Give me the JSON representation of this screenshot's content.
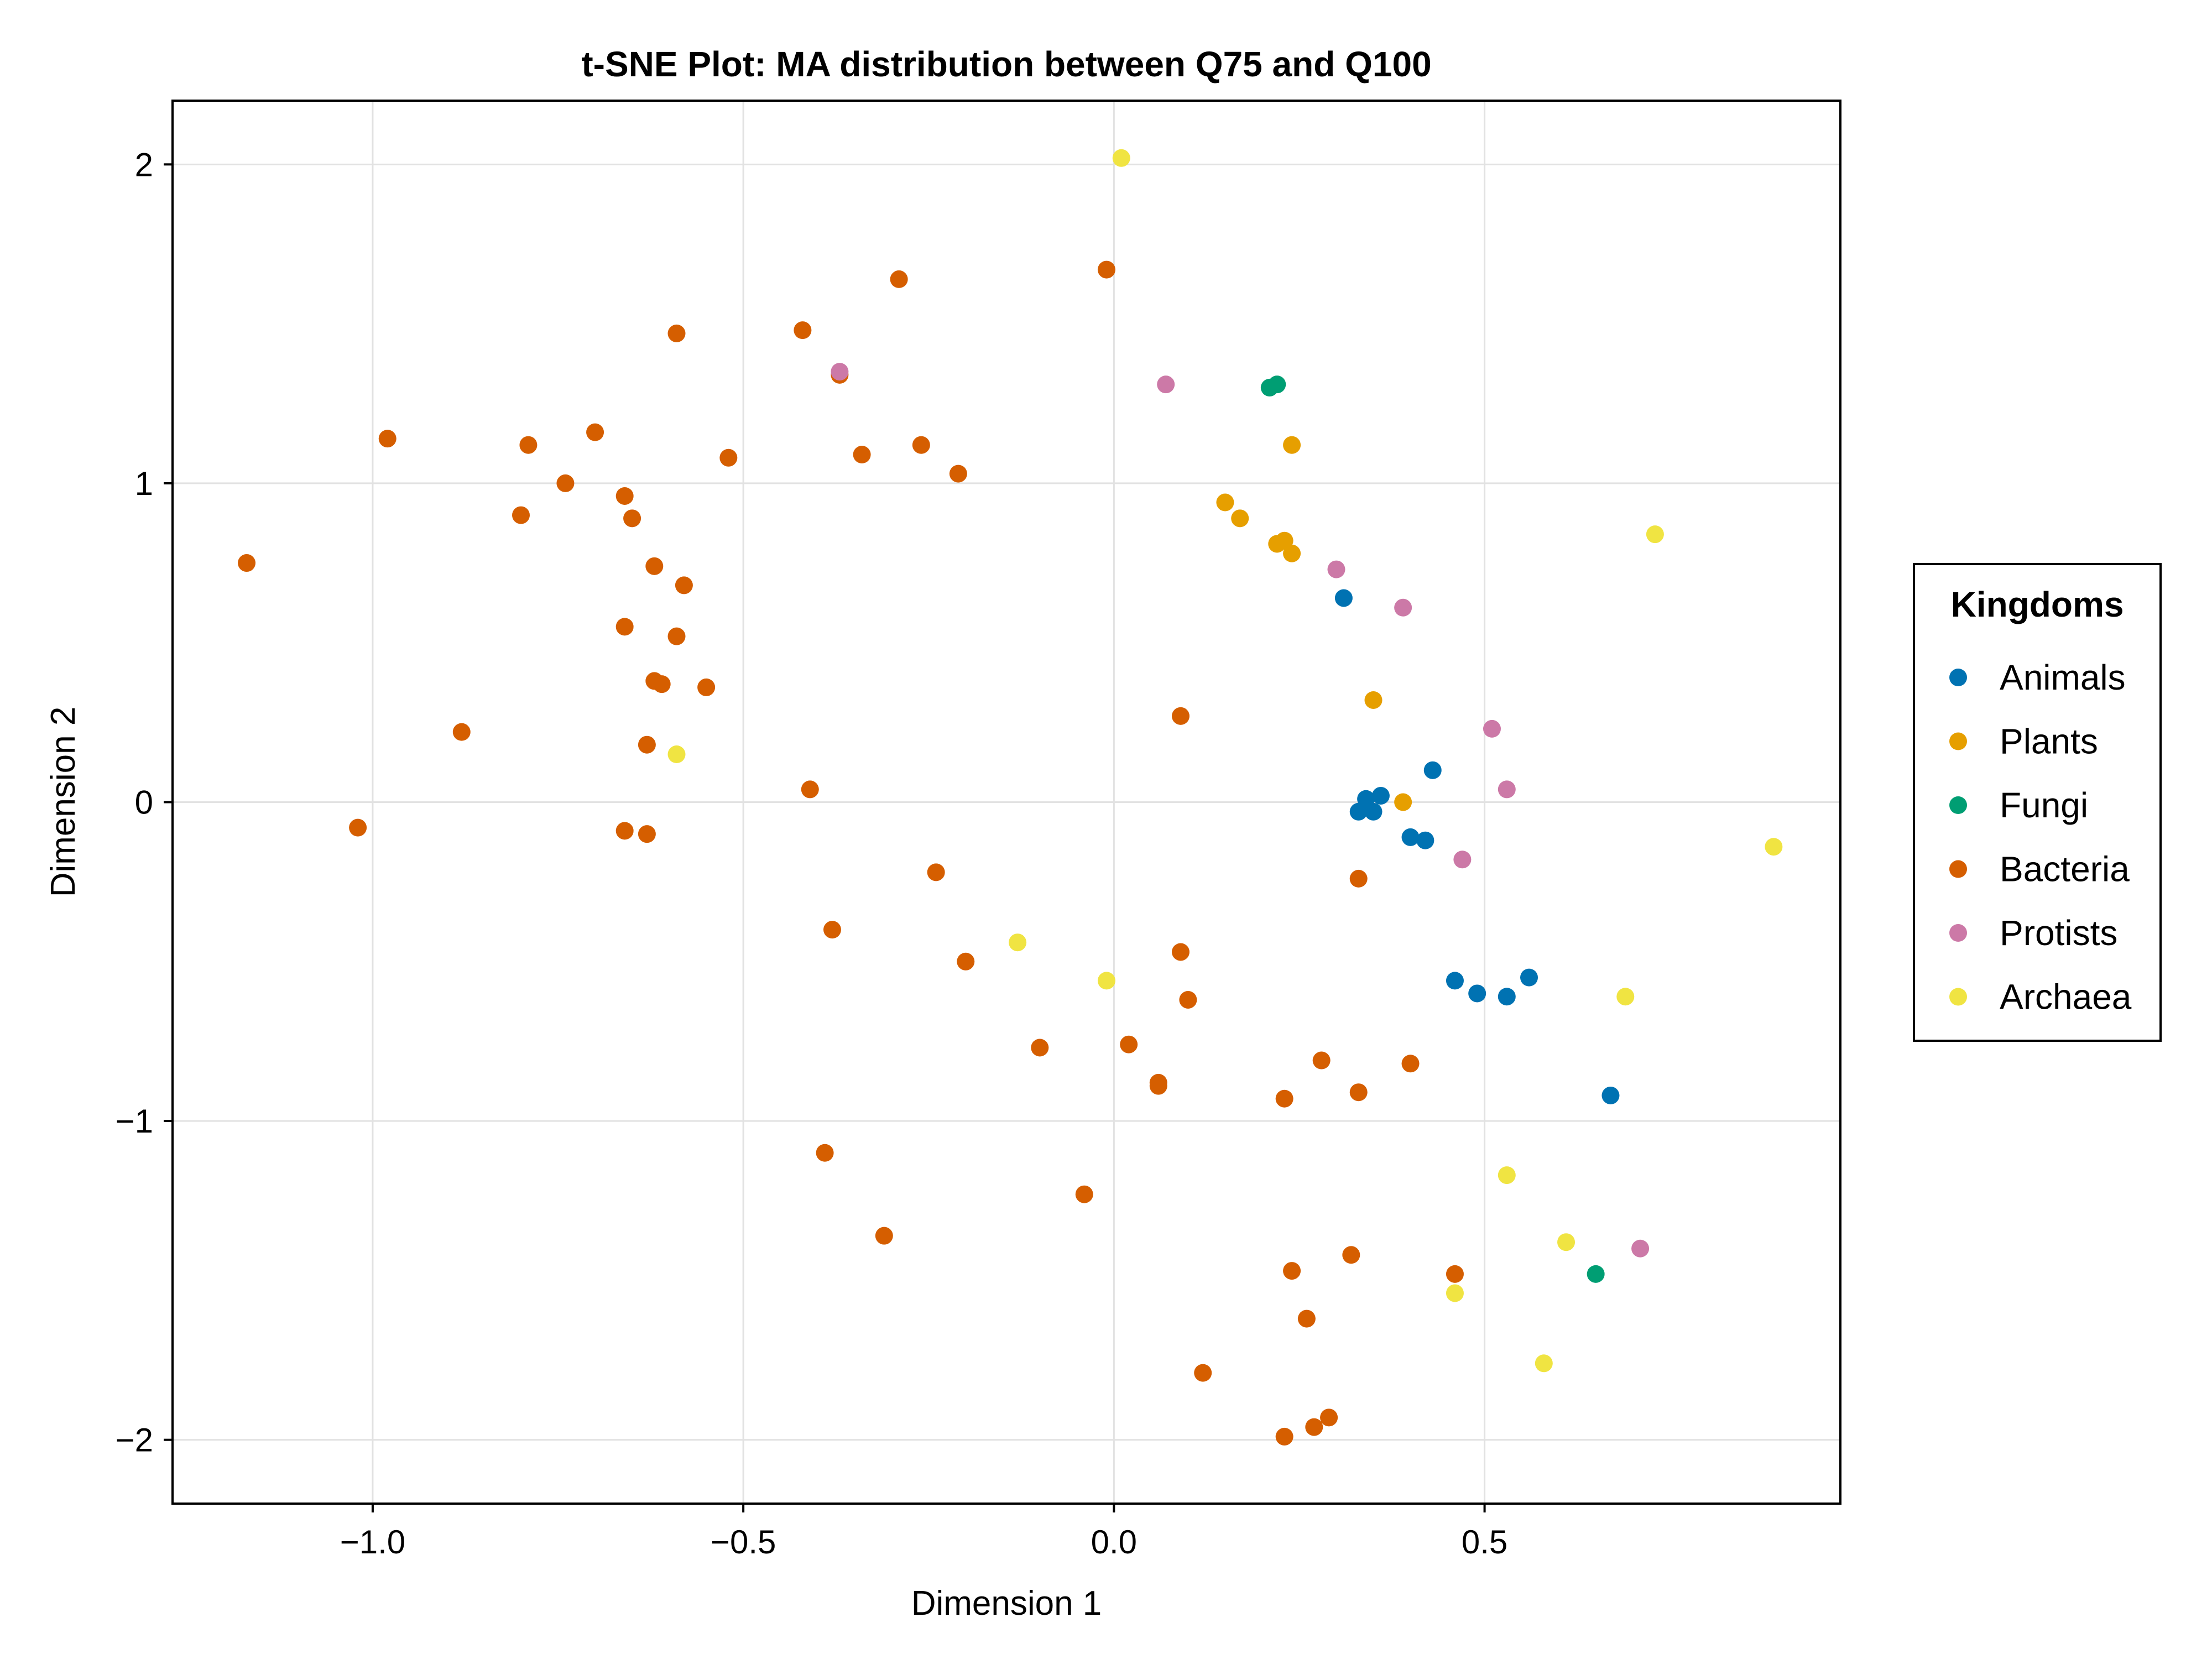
{
  "chart_data": {
    "type": "scatter",
    "title": "t-SNE Plot: MA distribution between Q75 and Q100",
    "xlabel": "Dimension 1",
    "ylabel": "Dimension 2",
    "xlim": [
      -1.27,
      0.98
    ],
    "ylim": [
      -2.2,
      2.2
    ],
    "grid": true,
    "xticks": [
      -1.0,
      -0.5,
      0.0,
      0.5
    ],
    "xtick_labels": [
      "−1.0",
      "−0.5",
      "0.0",
      "0.5"
    ],
    "yticks": [
      -2,
      -1,
      0,
      1,
      2
    ],
    "ytick_labels": [
      "−2",
      "−1",
      "0",
      "1",
      "2"
    ],
    "legend": {
      "title": "Kingdoms",
      "placement": "right"
    },
    "series": [
      {
        "name": "Animals",
        "color": "#0072b2",
        "points": [
          [
            0.31,
            0.64
          ],
          [
            0.43,
            0.1
          ],
          [
            0.34,
            0.01
          ],
          [
            0.36,
            0.02
          ],
          [
            0.33,
            -0.03
          ],
          [
            0.35,
            -0.03
          ],
          [
            0.4,
            -0.11
          ],
          [
            0.42,
            -0.12
          ],
          [
            0.46,
            -0.56
          ],
          [
            0.49,
            -0.6
          ],
          [
            0.53,
            -0.61
          ],
          [
            0.56,
            -0.55
          ],
          [
            0.67,
            -0.92
          ]
        ]
      },
      {
        "name": "Plants",
        "color": "#e69f00",
        "points": [
          [
            0.24,
            1.12
          ],
          [
            0.15,
            0.94
          ],
          [
            0.17,
            0.89
          ],
          [
            0.22,
            0.81
          ],
          [
            0.23,
            0.82
          ],
          [
            0.24,
            0.78
          ],
          [
            0.35,
            0.32
          ],
          [
            0.39,
            0.0
          ]
        ]
      },
      {
        "name": "Fungi",
        "color": "#009e73",
        "points": [
          [
            0.21,
            1.3
          ],
          [
            0.22,
            1.31
          ],
          [
            0.65,
            -1.48
          ]
        ]
      },
      {
        "name": "Bacteria",
        "color": "#d55e00",
        "points": [
          [
            -1.17,
            0.75
          ],
          [
            -0.98,
            1.14
          ],
          [
            -1.02,
            -0.08
          ],
          [
            -0.88,
            0.22
          ],
          [
            -0.79,
            1.12
          ],
          [
            -0.8,
            0.9
          ],
          [
            -0.74,
            1.0
          ],
          [
            -0.7,
            1.16
          ],
          [
            -0.66,
            0.96
          ],
          [
            -0.65,
            0.89
          ],
          [
            -0.62,
            0.74
          ],
          [
            -0.66,
            0.55
          ],
          [
            -0.58,
            0.68
          ],
          [
            -0.59,
            0.52
          ],
          [
            -0.62,
            0.38
          ],
          [
            -0.61,
            0.37
          ],
          [
            -0.55,
            0.36
          ],
          [
            -0.63,
            0.18
          ],
          [
            -0.66,
            -0.09
          ],
          [
            -0.63,
            -0.1
          ],
          [
            -0.59,
            1.47
          ],
          [
            -0.52,
            1.08
          ],
          [
            -0.42,
            1.48
          ],
          [
            -0.37,
            1.34
          ],
          [
            -0.34,
            1.09
          ],
          [
            -0.29,
            1.64
          ],
          [
            -0.26,
            1.12
          ],
          [
            -0.21,
            1.03
          ],
          [
            -0.01,
            1.67
          ],
          [
            -0.41,
            0.04
          ],
          [
            -0.24,
            -0.22
          ],
          [
            -0.38,
            -0.4
          ],
          [
            -0.2,
            -0.5
          ],
          [
            -0.1,
            -0.77
          ],
          [
            0.02,
            -0.76
          ],
          [
            0.09,
            -0.47
          ],
          [
            0.1,
            -0.62
          ],
          [
            0.06,
            -0.89
          ],
          [
            0.06,
            -0.88
          ],
          [
            0.09,
            0.27
          ],
          [
            0.33,
            -0.24
          ],
          [
            0.28,
            -0.81
          ],
          [
            0.4,
            -0.82
          ],
          [
            0.23,
            -0.93
          ],
          [
            0.33,
            -0.91
          ],
          [
            -0.39,
            -1.1
          ],
          [
            -0.04,
            -1.23
          ],
          [
            -0.31,
            -1.36
          ],
          [
            0.32,
            -1.42
          ],
          [
            0.24,
            -1.47
          ],
          [
            0.46,
            -1.48
          ],
          [
            0.26,
            -1.62
          ],
          [
            0.12,
            -1.79
          ],
          [
            0.29,
            -1.93
          ],
          [
            0.27,
            -1.96
          ],
          [
            0.23,
            -1.99
          ]
        ]
      },
      {
        "name": "Protists",
        "color": "#cc79a7",
        "points": [
          [
            -0.37,
            1.35
          ],
          [
            0.07,
            1.31
          ],
          [
            0.3,
            0.73
          ],
          [
            0.39,
            0.61
          ],
          [
            0.51,
            0.23
          ],
          [
            0.53,
            0.04
          ],
          [
            0.47,
            -0.18
          ],
          [
            0.71,
            -1.4
          ]
        ]
      },
      {
        "name": "Archaea",
        "color": "#f0e442",
        "points": [
          [
            0.01,
            2.02
          ],
          [
            0.73,
            0.84
          ],
          [
            0.89,
            -0.14
          ],
          [
            -0.59,
            0.15
          ],
          [
            -0.13,
            -0.44
          ],
          [
            -0.01,
            -0.56
          ],
          [
            0.69,
            -0.61
          ],
          [
            0.53,
            -1.17
          ],
          [
            0.61,
            -1.38
          ],
          [
            0.46,
            -1.54
          ],
          [
            0.58,
            -1.76
          ]
        ]
      }
    ]
  }
}
